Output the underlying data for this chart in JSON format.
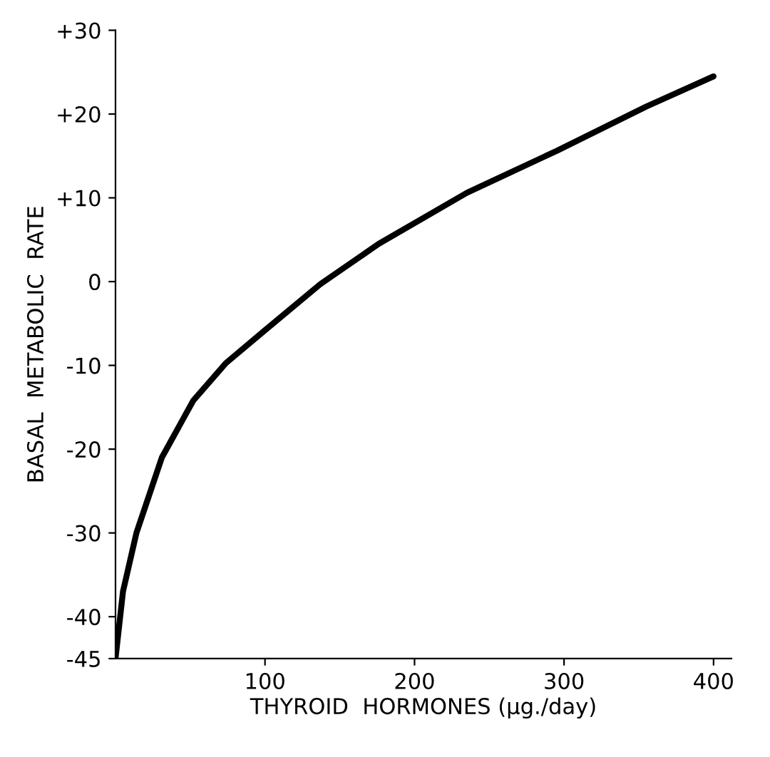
{
  "chart_data": {
    "type": "line",
    "xlabel": "THYROID  HORMONES (µg./day)",
    "ylabel": "BASAL  METABOLIC  RATE",
    "x": [
      0,
      5,
      14,
      31,
      52,
      74,
      100,
      137,
      176,
      235,
      295,
      355,
      400
    ],
    "series": [
      {
        "color": "#000000",
        "values": [
          -45,
          -37,
          -30,
          -21,
          -14.2,
          -9.7,
          -5.8,
          -0.3,
          4.5,
          10.6,
          15.6,
          20.9,
          24.5
        ]
      }
    ],
    "xlim": [
      0,
      412
    ],
    "ylim": [
      -45,
      30
    ],
    "xticks": [
      100,
      200,
      300,
      400
    ],
    "yticks": [
      {
        "value": 30,
        "label": "+30"
      },
      {
        "value": 20,
        "label": "+20"
      },
      {
        "value": 10,
        "label": "+10"
      },
      0,
      -10,
      -20,
      -30,
      -40,
      -45
    ],
    "grid": false,
    "legend": false,
    "marker": "none",
    "line_style": "solid"
  }
}
